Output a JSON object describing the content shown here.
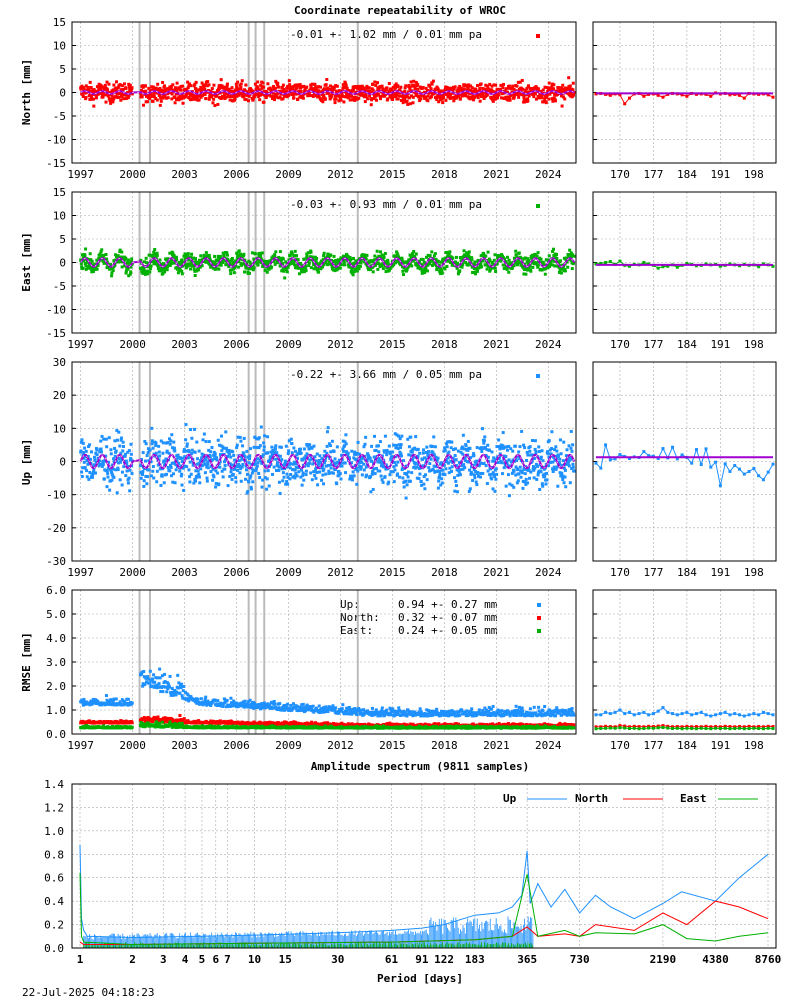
{
  "title": "Coordinate repeatability of WROC",
  "timestamp": "22-Jul-2025 04:18:23",
  "colors": {
    "north": "#ff0000",
    "east": "#00b000",
    "up": "#1e90ff",
    "model": "#a000d0"
  },
  "x_ticks_years": [
    "1997",
    "2000",
    "2003",
    "2006",
    "2009",
    "2012",
    "2015",
    "2018",
    "2021",
    "2024"
  ],
  "x_ticks_days": [
    "170",
    "177",
    "184",
    "191",
    "198"
  ],
  "chart_data": [
    {
      "type": "scatter",
      "name": "north",
      "ylabel": "North [mm]",
      "ylim": [
        -15,
        15
      ],
      "yticks": [
        "15",
        "10",
        "5",
        "0",
        "-5",
        "-10",
        "-15"
      ],
      "stats": "-0.01 +- 1.02 mm /  0.01 mm pa",
      "scatter_sd": 1.0,
      "seasonal_amplitude": 0.3,
      "recent_values": [
        -0.3,
        -0.2,
        -0.4,
        -0.6,
        -0.3,
        -0.5,
        -2.4,
        -1.2,
        -0.3,
        -0.2,
        -0.8,
        -0.4,
        -0.3,
        -0.6,
        -1.0,
        -0.4,
        -0.2,
        -0.3,
        -0.5,
        -0.8,
        -0.2,
        -0.4,
        -0.3,
        -0.4,
        -0.8,
        -0.1,
        -0.3,
        -0.2,
        -0.5,
        -0.4,
        -0.6,
        -1.2,
        -0.2,
        -0.3,
        -0.4,
        -0.3,
        -0.5,
        -1.0
      ]
    },
    {
      "type": "scatter",
      "name": "east",
      "ylabel": "East [mm]",
      "ylim": [
        -15,
        15
      ],
      "yticks": [
        "15",
        "10",
        "5",
        "0",
        "-5",
        "-10",
        "-15"
      ],
      "stats": "-0.03 +- 0.93 mm /  0.01 mm pa",
      "scatter_sd": 0.9,
      "seasonal_amplitude": 0.9,
      "recent_values": [
        -0.3,
        -0.2,
        0.0,
        0.2,
        -0.4,
        0.3,
        -0.6,
        -0.8,
        -0.4,
        -0.5,
        0.0,
        -0.3,
        -0.6,
        -1.2,
        -0.9,
        -0.8,
        -0.5,
        -1.0,
        -0.6,
        -0.2,
        -0.4,
        -0.7,
        -0.6,
        -0.3,
        -0.5,
        -0.4,
        -0.8,
        -0.6,
        -0.3,
        -0.5,
        -0.7,
        -0.4,
        -0.6,
        -0.5,
        -0.9,
        -0.3,
        -0.5,
        -0.8
      ]
    },
    {
      "type": "scatter",
      "name": "up",
      "ylabel": "Up [mm]",
      "ylim": [
        -30,
        30
      ],
      "yticks": [
        "30",
        "20",
        "10",
        "0",
        "-10",
        "-20",
        "-30"
      ],
      "stats": "-0.22 +- 3.66 mm /  0.05 mm pa",
      "scatter_sd": 3.6,
      "seasonal_amplitude": 2.0,
      "recent_values": [
        -0.5,
        -2.0,
        5.0,
        0.5,
        0.8,
        2.1,
        1.5,
        0.9,
        1.4,
        1.2,
        3.0,
        1.8,
        1.6,
        0.9,
        3.9,
        1.1,
        4.3,
        0.8,
        2.0,
        1.2,
        -0.5,
        3.6,
        -0.9,
        3.8,
        -1.7,
        -0.2,
        -7.3,
        -0.7,
        -3.0,
        -1.2,
        -2.3,
        -3.8,
        -3.0,
        -2.1,
        -4.3,
        -5.5,
        -3.2,
        -0.8
      ]
    },
    {
      "type": "scatter",
      "name": "rmse",
      "ylabel": "RMSE [mm]",
      "ylim": [
        0,
        6
      ],
      "yticks": [
        "6.0",
        "5.0",
        "4.0",
        "3.0",
        "2.0",
        "1.0",
        "0.0"
      ],
      "legend": [
        {
          "label": "Up:",
          "value": "0.94 +- 0.27 mm"
        },
        {
          "label": "North:",
          "value": "0.32 +- 0.07 mm"
        },
        {
          "label": "East:",
          "value": "0.24 +- 0.05 mm"
        }
      ],
      "recent_up": [
        0.8,
        0.8,
        0.9,
        0.85,
        0.9,
        1.0,
        0.85,
        0.9,
        0.8,
        0.85,
        0.9,
        0.8,
        0.85,
        0.95,
        1.1,
        0.9,
        0.85,
        0.8,
        0.85,
        0.9,
        0.8,
        0.85,
        0.9,
        0.8,
        0.75,
        0.8,
        0.85,
        0.9,
        0.8,
        0.85,
        0.8,
        0.75,
        0.8,
        0.85,
        0.8,
        0.9,
        0.85,
        0.8
      ],
      "recent_north": [
        0.3,
        0.3,
        0.32,
        0.31,
        0.3,
        0.35,
        0.33,
        0.3,
        0.32,
        0.31,
        0.3,
        0.32,
        0.31,
        0.33,
        0.35,
        0.32,
        0.3,
        0.31,
        0.3,
        0.32,
        0.3,
        0.31,
        0.3,
        0.32,
        0.3,
        0.31,
        0.3,
        0.32,
        0.31,
        0.3,
        0.31,
        0.3,
        0.32,
        0.3,
        0.31,
        0.3,
        0.32,
        0.31
      ],
      "recent_east": [
        0.22,
        0.23,
        0.24,
        0.25,
        0.24,
        0.26,
        0.25,
        0.23,
        0.24,
        0.22,
        0.23,
        0.25,
        0.24,
        0.26,
        0.27,
        0.25,
        0.23,
        0.24,
        0.22,
        0.24,
        0.23,
        0.22,
        0.24,
        0.23,
        0.22,
        0.24,
        0.23,
        0.24,
        0.22,
        0.23,
        0.24,
        0.22,
        0.23,
        0.24,
        0.23,
        0.22,
        0.24,
        0.23
      ]
    },
    {
      "type": "line",
      "name": "spectrum",
      "title": "Amplitude spectrum (9811 samples)",
      "xlabel": "Period [days]",
      "xscale": "log",
      "xticks": [
        "1",
        "2",
        "3",
        "4",
        "5",
        "6",
        "7",
        "10",
        "15",
        "30",
        "61",
        "91",
        "122",
        "183",
        "365",
        "730",
        "2190",
        "4380",
        "8760"
      ],
      "ylim": [
        0,
        1.4
      ],
      "yticks": [
        "1.4",
        "1.2",
        "1.0",
        "0.8",
        "0.6",
        "0.4",
        "0.2",
        "0.0"
      ],
      "legend": [
        "Up",
        "North",
        "East"
      ],
      "series": [
        {
          "name": "Up",
          "x": [
            1,
            1.02,
            1.05,
            1.1,
            2,
            5,
            10,
            30,
            61,
            91,
            122,
            183,
            250,
            300,
            340,
            365,
            380,
            420,
            500,
            600,
            730,
            900,
            1100,
            1500,
            2190,
            2800,
            4380,
            6000,
            8760
          ],
          "y": [
            0.88,
            0.25,
            0.15,
            0.1,
            0.09,
            0.1,
            0.11,
            0.13,
            0.15,
            0.17,
            0.2,
            0.28,
            0.3,
            0.35,
            0.45,
            0.83,
            0.38,
            0.55,
            0.35,
            0.5,
            0.3,
            0.45,
            0.35,
            0.25,
            0.38,
            0.48,
            0.4,
            0.6,
            0.8
          ]
        },
        {
          "name": "North",
          "x": [
            1,
            1.05,
            2,
            10,
            61,
            183,
            300,
            365,
            420,
            600,
            730,
            900,
            1500,
            2190,
            3000,
            4380,
            6000,
            8760
          ],
          "y": [
            0.05,
            0.03,
            0.03,
            0.04,
            0.05,
            0.07,
            0.1,
            0.18,
            0.1,
            0.12,
            0.1,
            0.2,
            0.15,
            0.3,
            0.2,
            0.4,
            0.35,
            0.25
          ]
        },
        {
          "name": "East",
          "x": [
            1,
            1.02,
            1.05,
            2,
            10,
            61,
            183,
            300,
            365,
            420,
            600,
            730,
            900,
            1500,
            2190,
            3000,
            4380,
            6000,
            8760
          ],
          "y": [
            0.64,
            0.1,
            0.05,
            0.03,
            0.04,
            0.05,
            0.07,
            0.1,
            0.63,
            0.1,
            0.15,
            0.1,
            0.13,
            0.12,
            0.2,
            0.08,
            0.06,
            0.1,
            0.13
          ]
        }
      ]
    }
  ]
}
